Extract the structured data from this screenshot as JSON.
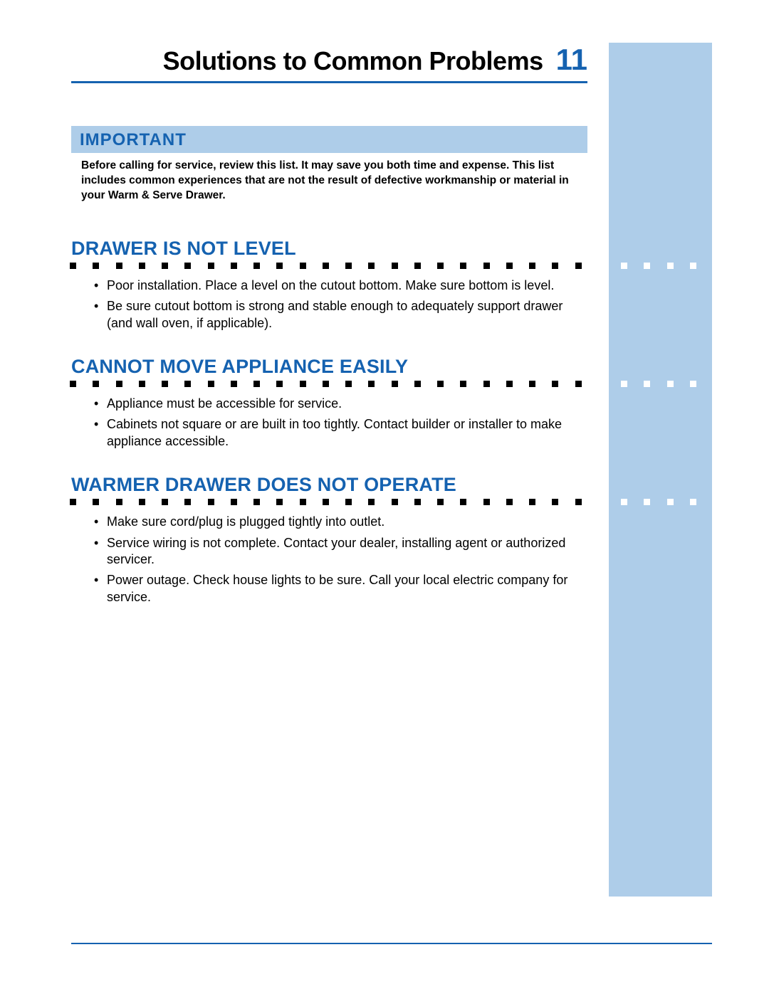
{
  "header": {
    "title": "Solutions to Common Problems",
    "page_number": "11"
  },
  "important": {
    "label": "IMPORTANT",
    "text": "Before calling for service, review this list. It may save you both time and expense. This list includes common experiences that are not the result of defective workmanship or material in your Warm & Serve Drawer."
  },
  "sections": [
    {
      "title": "DRAWER IS NOT LEVEL",
      "items": [
        "Poor installation. Place a level on the cutout bottom. Make sure bottom is level.",
        "Be sure cutout bottom is strong and stable enough to adequately support drawer (and wall oven, if applicable)."
      ]
    },
    {
      "title": "CANNOT MOVE APPLIANCE EASILY",
      "items": [
        "Appliance must be accessible for service.",
        "Cabinets not square or are built in too tightly. Contact builder or installer to make appliance accessible."
      ]
    },
    {
      "title": "WARMER DRAWER DOES NOT OPERATE",
      "items": [
        "Make sure cord/plug is plugged tightly into outlet.",
        "Service wiring is not complete. Contact your dealer, installing agent or authorized servicer.",
        "Power outage. Check house lights to be sure. Call your local electric company for service."
      ]
    }
  ],
  "colors": {
    "accent_blue": "#1562b0",
    "light_blue": "#aecde9",
    "text_black": "#000000",
    "background": "#ffffff"
  },
  "dot_counts": {
    "dark": 23,
    "light": 5
  }
}
